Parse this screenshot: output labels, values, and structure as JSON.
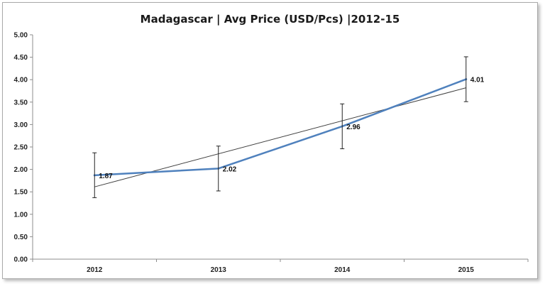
{
  "chart_data": {
    "type": "line",
    "title": "Madagascar  | Avg Price (USD/Pcs) |2012-15",
    "xlabel": "",
    "ylabel": "",
    "categories": [
      "2012",
      "2013",
      "2014",
      "2015"
    ],
    "series": [
      {
        "values": [
          1.87,
          2.02,
          2.96,
          4.01
        ],
        "data_labels": [
          "1.87",
          "2.02",
          "2.96",
          "4.01"
        ],
        "error_bars": [
          0.5,
          0.5,
          0.5,
          0.5
        ],
        "color": "#4f81bd"
      }
    ],
    "trendline": {
      "type": "linear",
      "color": "#404040"
    },
    "ylim": [
      0,
      5
    ],
    "yticks": [
      "0.00",
      "0.50",
      "1.00",
      "1.50",
      "2.00",
      "2.50",
      "3.00",
      "3.50",
      "4.00",
      "4.50",
      "5.00"
    ],
    "ytick_values": [
      0,
      0.5,
      1,
      1.5,
      2,
      2.5,
      3,
      3.5,
      4,
      4.5,
      5
    ],
    "grid": false,
    "legend": "none"
  }
}
